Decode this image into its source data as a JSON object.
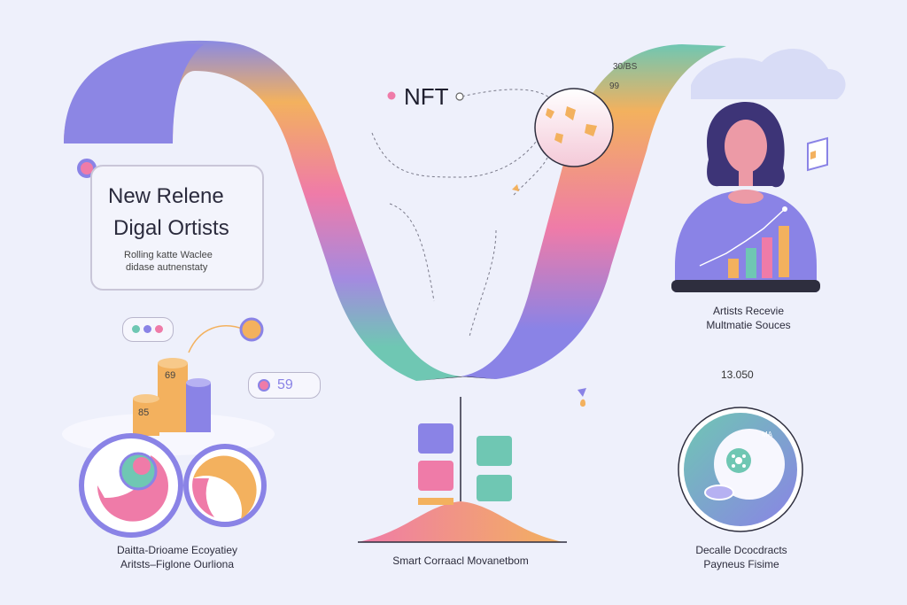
{
  "title": {
    "line1": "New Relene",
    "line2": "Digal Ortists",
    "sub1": "Rolling katte Waclee",
    "sub2": "didase autnenstaty"
  },
  "nft": {
    "label": "NFT"
  },
  "top_right": {
    "code1": "30/BS",
    "code2": "99"
  },
  "artist": {
    "line1": "Artists Recevie",
    "line2": "Multmatie Souces"
  },
  "stat": {
    "value": "13.050"
  },
  "badge": {
    "value": "59"
  },
  "cylinders": {
    "back": "69",
    "front": "85"
  },
  "ecosystem": {
    "line1": "Daitta-Drioame Ecoyatiey",
    "line2": "Aritsts–Figlone Ourliona"
  },
  "contract": {
    "label": "Smart Corraacl Movanetbom"
  },
  "payments": {
    "line1": "Decalle Dcocdracts",
    "line2": "Payneus Fisime",
    "mini": "MA"
  },
  "colors": {
    "purple": "#8a83e6",
    "orange": "#f3b15e",
    "pink": "#ef7ba8",
    "teal": "#6fc7b3",
    "bg": "#eef0fb"
  }
}
